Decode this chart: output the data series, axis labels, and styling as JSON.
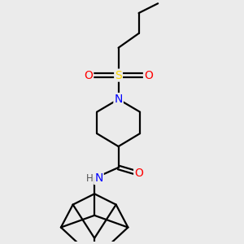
{
  "bg_color": "#ebebeb",
  "atom_colors": {
    "C": "#000000",
    "N": "#0000FF",
    "O": "#FF0000",
    "S": "#FFD700",
    "H": "#555555"
  },
  "line_color": "#000000",
  "line_width": 1.6,
  "figsize": [
    3.0,
    3.0
  ],
  "dpi": 100
}
